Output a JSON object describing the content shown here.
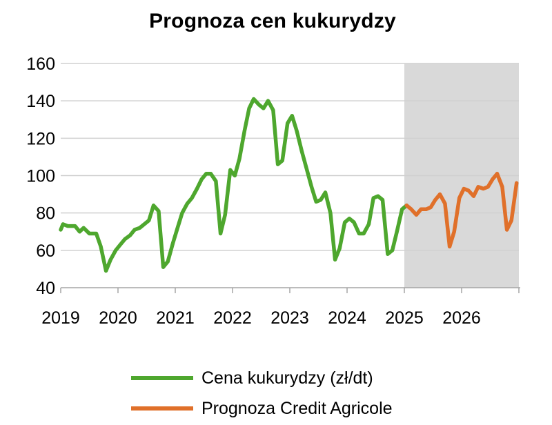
{
  "chart_data": {
    "type": "line",
    "title": "Prognoza cen kukurydzy",
    "xlabel": "",
    "ylabel": "",
    "ylim": [
      40,
      160
    ],
    "yticks": [
      40,
      60,
      80,
      100,
      120,
      140,
      160
    ],
    "xlim": [
      2019,
      2027
    ],
    "xticks": [
      "2019",
      "2020",
      "2021",
      "2022",
      "2023",
      "2024",
      "2025",
      "2026"
    ],
    "grid": true,
    "legend_position": "bottom",
    "forecast_region": {
      "from": 2025,
      "to": 2027,
      "color": "#d9d9d9"
    },
    "series": [
      {
        "name": "Cena kukurydzy (zł/dt)",
        "color": "#4ea72e",
        "points": [
          [
            2019.0,
            71
          ],
          [
            2019.04,
            74
          ],
          [
            2019.12,
            73
          ],
          [
            2019.25,
            73
          ],
          [
            2019.33,
            70
          ],
          [
            2019.4,
            72
          ],
          [
            2019.5,
            69
          ],
          [
            2019.62,
            69
          ],
          [
            2019.7,
            62
          ],
          [
            2019.79,
            49
          ],
          [
            2019.87,
            55
          ],
          [
            2019.96,
            60
          ],
          [
            2020.04,
            63
          ],
          [
            2020.12,
            66
          ],
          [
            2020.21,
            68
          ],
          [
            2020.29,
            71
          ],
          [
            2020.38,
            72
          ],
          [
            2020.46,
            74
          ],
          [
            2020.54,
            76
          ],
          [
            2020.62,
            84
          ],
          [
            2020.71,
            81
          ],
          [
            2020.79,
            51
          ],
          [
            2020.87,
            54
          ],
          [
            2020.96,
            64
          ],
          [
            2021.04,
            72
          ],
          [
            2021.12,
            80
          ],
          [
            2021.21,
            85
          ],
          [
            2021.29,
            88
          ],
          [
            2021.38,
            93
          ],
          [
            2021.46,
            98
          ],
          [
            2021.54,
            101
          ],
          [
            2021.62,
            101
          ],
          [
            2021.71,
            97
          ],
          [
            2021.79,
            69
          ],
          [
            2021.87,
            79
          ],
          [
            2021.96,
            103
          ],
          [
            2022.04,
            100
          ],
          [
            2022.12,
            109
          ],
          [
            2022.21,
            124
          ],
          [
            2022.29,
            136
          ],
          [
            2022.37,
            141
          ],
          [
            2022.46,
            138
          ],
          [
            2022.54,
            136
          ],
          [
            2022.62,
            140
          ],
          [
            2022.71,
            135
          ],
          [
            2022.79,
            106
          ],
          [
            2022.87,
            108
          ],
          [
            2022.96,
            128
          ],
          [
            2023.04,
            132
          ],
          [
            2023.12,
            124
          ],
          [
            2023.21,
            113
          ],
          [
            2023.29,
            104
          ],
          [
            2023.38,
            94
          ],
          [
            2023.46,
            86
          ],
          [
            2023.54,
            87
          ],
          [
            2023.62,
            91
          ],
          [
            2023.71,
            80
          ],
          [
            2023.79,
            55
          ],
          [
            2023.87,
            61
          ],
          [
            2023.96,
            75
          ],
          [
            2024.04,
            77
          ],
          [
            2024.12,
            75
          ],
          [
            2024.21,
            69
          ],
          [
            2024.29,
            69
          ],
          [
            2024.38,
            74
          ],
          [
            2024.46,
            88
          ],
          [
            2024.54,
            89
          ],
          [
            2024.62,
            87
          ],
          [
            2024.71,
            58
          ],
          [
            2024.79,
            60
          ],
          [
            2024.87,
            70
          ],
          [
            2024.96,
            82
          ],
          [
            2025.04,
            84
          ]
        ]
      },
      {
        "name": "Prognoza Credit Agricole",
        "color": "#e0702a",
        "points": [
          [
            2025.04,
            84
          ],
          [
            2025.12,
            82
          ],
          [
            2025.21,
            79
          ],
          [
            2025.29,
            82
          ],
          [
            2025.38,
            82
          ],
          [
            2025.46,
            83
          ],
          [
            2025.54,
            87
          ],
          [
            2025.62,
            90
          ],
          [
            2025.71,
            85
          ],
          [
            2025.79,
            62
          ],
          [
            2025.87,
            70
          ],
          [
            2025.96,
            88
          ],
          [
            2026.04,
            93
          ],
          [
            2026.12,
            92
          ],
          [
            2026.21,
            89
          ],
          [
            2026.29,
            94
          ],
          [
            2026.38,
            93
          ],
          [
            2026.46,
            94
          ],
          [
            2026.54,
            98
          ],
          [
            2026.62,
            101
          ],
          [
            2026.71,
            94
          ],
          [
            2026.79,
            71
          ],
          [
            2026.87,
            76
          ],
          [
            2026.96,
            96
          ]
        ]
      }
    ]
  }
}
